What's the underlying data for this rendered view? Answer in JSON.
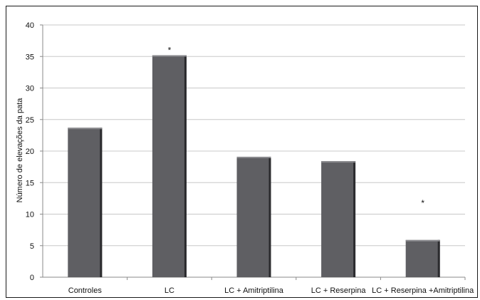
{
  "chart_data": {
    "type": "bar",
    "title": "",
    "xlabel": "",
    "ylabel": "Número de elevações da pata",
    "ylim": [
      0,
      40
    ],
    "yticks": [
      0,
      5,
      10,
      15,
      20,
      25,
      30,
      35,
      40
    ],
    "grid": true,
    "categories": [
      "Controles",
      "LC",
      "LC +  Amitriptilina",
      "LC + Reserpina",
      "LC + Reserpina +Amitriptilina"
    ],
    "values": [
      23.7,
      35.2,
      19.1,
      18.4,
      5.9
    ],
    "annotations": [
      "",
      "*",
      "",
      "",
      "*"
    ],
    "bar_color": "#5f5f63",
    "bar_highlight": "#8a8a8e",
    "bar_shadow": "#2b2b2e",
    "grid_color": "#c8c8c8"
  }
}
